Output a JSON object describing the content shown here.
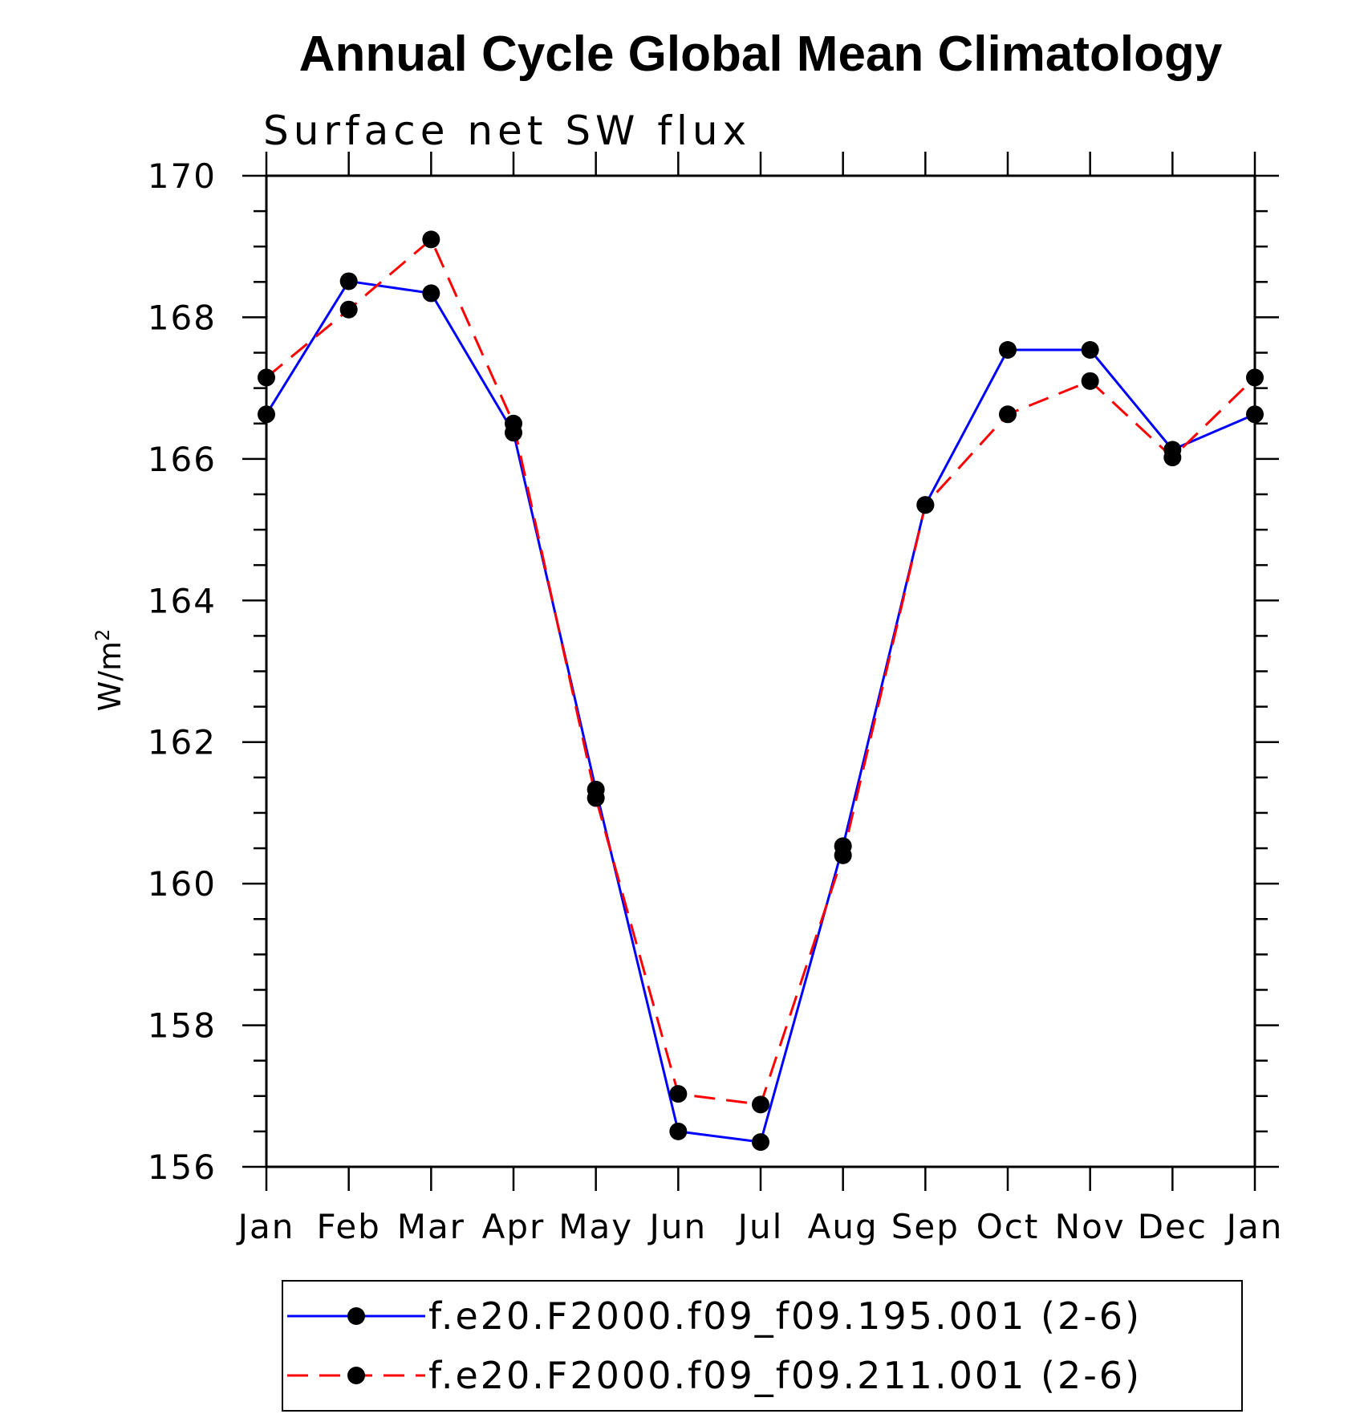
{
  "chart_data": {
    "type": "line",
    "title": "Annual Cycle Global Mean Climatology",
    "subtitle": "Surface net SW flux",
    "xlabel": "",
    "ylabel": "W/m",
    "ylabel_sup": "2",
    "categories": [
      "Jan",
      "Feb",
      "Mar",
      "Apr",
      "May",
      "Jun",
      "Jul",
      "Aug",
      "Sep",
      "Oct",
      "Nov",
      "Dec",
      "Jan"
    ],
    "ylim": [
      156,
      170
    ],
    "yticks": [
      156,
      158,
      160,
      162,
      164,
      166,
      168,
      170
    ],
    "legend_position": "bottom",
    "series": [
      {
        "name": "f.e20.F2000.f09_f09.195.001 (2-6)",
        "color": "#0000ff",
        "style": "solid",
        "values": [
          166.63,
          168.51,
          168.34,
          166.37,
          161.33,
          156.5,
          156.35,
          160.53,
          165.35,
          167.54,
          167.54,
          166.13,
          166.63
        ]
      },
      {
        "name": "f.e20.F2000.f09_f09.211.001 (2-6)",
        "color": "#ff0000",
        "style": "dashed",
        "values": [
          167.15,
          168.11,
          169.1,
          166.5,
          161.21,
          157.03,
          156.88,
          160.4,
          165.35,
          166.63,
          167.1,
          166.02,
          167.15
        ]
      }
    ]
  }
}
